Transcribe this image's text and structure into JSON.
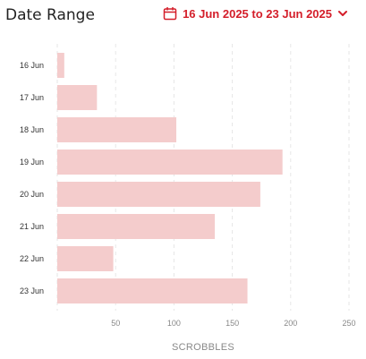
{
  "header": {
    "title": "Date Range",
    "range_label": "16 Jun 2025 to 23 Jun 2025",
    "accent_color": "#d41e2a",
    "icons": [
      "calendar-icon",
      "chevron-down-icon"
    ]
  },
  "chart_data": {
    "type": "bar",
    "orientation": "horizontal",
    "categories": [
      "16 Jun",
      "17 Jun",
      "18 Jun",
      "19 Jun",
      "20 Jun",
      "21 Jun",
      "22 Jun",
      "23 Jun"
    ],
    "values": [
      6,
      34,
      102,
      193,
      174,
      135,
      48,
      163
    ],
    "xlabel": "SCROBBLES",
    "xlim": [
      0,
      250
    ],
    "xticks": [
      50,
      100,
      150,
      200,
      250
    ],
    "grid": true,
    "bar_color": "#f4cccc"
  }
}
